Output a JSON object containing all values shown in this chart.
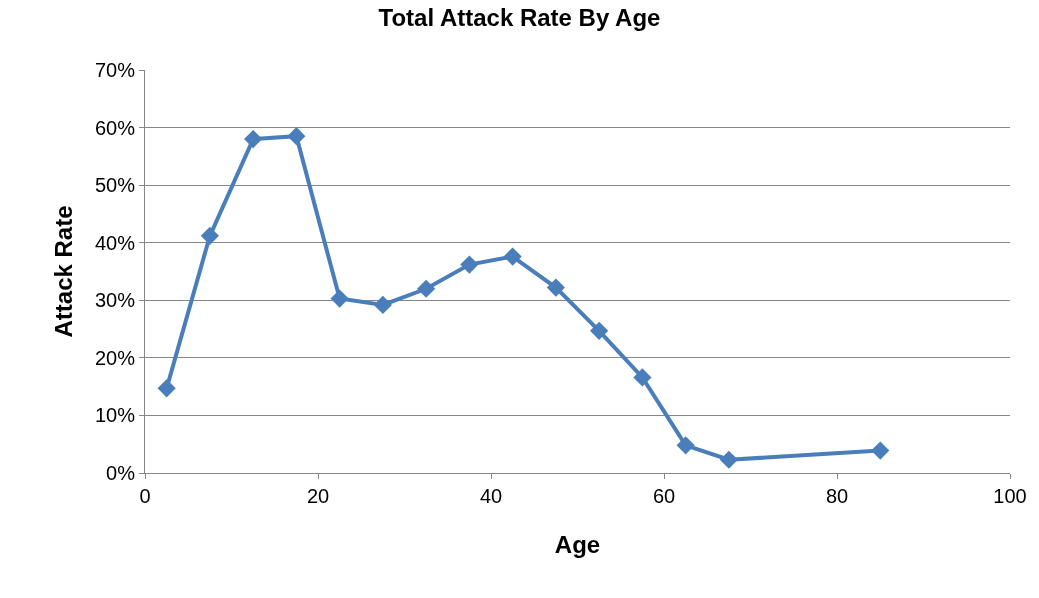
{
  "chart_data": {
    "type": "line",
    "title": "Total Attack Rate By Age",
    "xlabel": "Age",
    "ylabel": "Attack Rate",
    "x": [
      2.5,
      7.5,
      12.5,
      17.5,
      22.5,
      27.5,
      32.5,
      37.5,
      42.5,
      47.5,
      52.5,
      57.5,
      62.5,
      67.5,
      85
    ],
    "series": [
      {
        "color": "#4a7ebb",
        "values": [
          14.7,
          41.2,
          58.0,
          58.5,
          30.3,
          29.2,
          32.0,
          36.2,
          37.6,
          32.2,
          24.7,
          16.6,
          4.8,
          2.3,
          3.9
        ]
      }
    ],
    "xlim": [
      0,
      100
    ],
    "xticks": [
      0,
      20,
      40,
      60,
      80,
      100
    ],
    "ylim": [
      0,
      70
    ],
    "yticks": [
      {
        "value": 0,
        "label": "0%"
      },
      {
        "value": 10,
        "label": "10%"
      },
      {
        "value": 20,
        "label": "20%"
      },
      {
        "value": 30,
        "label": "30%"
      },
      {
        "value": 40,
        "label": "40%"
      },
      {
        "value": 50,
        "label": "50%"
      },
      {
        "value": 60,
        "label": "60%"
      },
      {
        "value": 70,
        "label": "70%"
      }
    ],
    "grid": "y",
    "marker": "diamond",
    "line_style": "solid",
    "legend": false
  }
}
